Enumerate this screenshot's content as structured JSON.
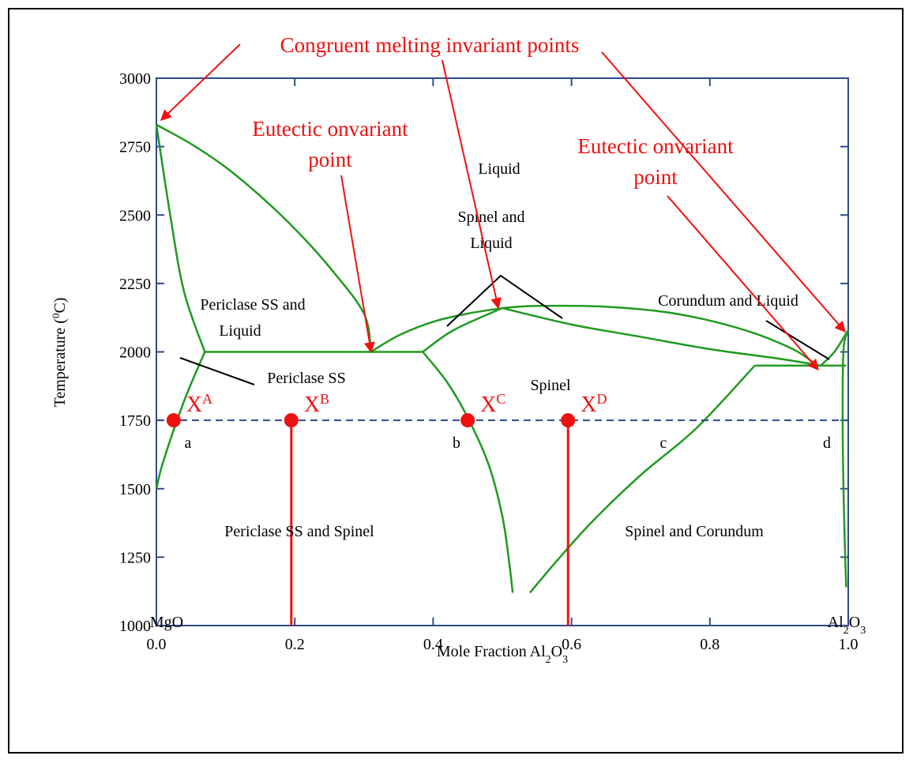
{
  "chart_data": {
    "type": "phase-diagram",
    "xlabel": {
      "base": "Mole Fraction Al",
      "sub": "2",
      "mid": "O",
      "sub2": "3"
    },
    "ylabel": {
      "pre": "Temperature (",
      "sup": "0",
      "post": "C)"
    },
    "xlim": [
      0,
      1
    ],
    "ylim": [
      1000,
      3000
    ],
    "xticks": [
      0.0,
      0.2,
      0.4,
      0.6,
      0.8,
      1.0
    ],
    "xtick_labels": [
      "0.0",
      "0.2",
      "0.4",
      "0.6",
      "0.8",
      "1.0"
    ],
    "yticks": [
      1000,
      1250,
      1500,
      1750,
      2000,
      2250,
      2500,
      2750,
      3000
    ],
    "ytick_labels": [
      "1000",
      "1250",
      "1500",
      "1750",
      "2000",
      "2250",
      "2500",
      "2750",
      "3000"
    ],
    "end_labels": {
      "left": "MgO",
      "right": {
        "base": "Al",
        "sub": "2",
        "mid": "O",
        "sub2": "3"
      }
    },
    "colors": {
      "phase_boundary": "#1f9a1f",
      "axis": "#2e4a8e",
      "annotation": "#ee1111",
      "isotherm": "#2e4a8e"
    },
    "phase_boundaries": [
      {
        "name": "periclase-liquidus",
        "points": [
          [
            0,
            2830
          ],
          [
            0.05,
            2760
          ],
          [
            0.1,
            2675
          ],
          [
            0.15,
            2570
          ],
          [
            0.2,
            2450
          ],
          [
            0.25,
            2310
          ],
          [
            0.3,
            2140
          ],
          [
            0.31,
            2000
          ]
        ]
      },
      {
        "name": "periclase-solidus",
        "points": [
          [
            0,
            2830
          ],
          [
            0.02,
            2500
          ],
          [
            0.04,
            2220
          ],
          [
            0.07,
            2000
          ]
        ]
      },
      {
        "name": "periclase-solvus",
        "points": [
          [
            0.07,
            2000
          ],
          [
            0.04,
            1820
          ],
          [
            0.01,
            1600
          ],
          [
            0,
            1500
          ]
        ]
      },
      {
        "name": "eutectic-1",
        "points": [
          [
            0.07,
            2000
          ],
          [
            0.385,
            2000
          ]
        ]
      },
      {
        "name": "spinel-liquidus-left",
        "points": [
          [
            0.31,
            2000
          ],
          [
            0.35,
            2060
          ],
          [
            0.4,
            2110
          ],
          [
            0.45,
            2140
          ],
          [
            0.5,
            2160
          ]
        ]
      },
      {
        "name": "spinel-liquidus-right",
        "points": [
          [
            0.5,
            2160
          ],
          [
            0.6,
            2100
          ],
          [
            0.7,
            2055
          ],
          [
            0.8,
            2010
          ],
          [
            0.9,
            1975
          ],
          [
            0.96,
            1950
          ]
        ]
      },
      {
        "name": "corundum-liquidus",
        "points": [
          [
            0.96,
            1950
          ],
          [
            0.98,
            2000
          ],
          [
            1.0,
            2080
          ]
        ]
      },
      {
        "name": "spinel-solidus-left",
        "points": [
          [
            0.385,
            2000
          ],
          [
            0.43,
            2080
          ],
          [
            0.5,
            2160
          ]
        ]
      },
      {
        "name": "spinel-solidus-right",
        "points": [
          [
            0.5,
            2160
          ],
          [
            0.55,
            2168
          ],
          [
            0.65,
            2165
          ],
          [
            0.75,
            2140
          ],
          [
            0.85,
            2080
          ],
          [
            0.92,
            2010
          ],
          [
            0.955,
            1950
          ]
        ]
      },
      {
        "name": "spinel-solvus-left",
        "points": [
          [
            0.385,
            2000
          ],
          [
            0.42,
            1890
          ],
          [
            0.45,
            1760
          ],
          [
            0.48,
            1590
          ],
          [
            0.5,
            1400
          ],
          [
            0.51,
            1230
          ],
          [
            0.515,
            1120
          ]
        ]
      },
      {
        "name": "spinel-solvus-right",
        "points": [
          [
            0.54,
            1120
          ],
          [
            0.58,
            1240
          ],
          [
            0.63,
            1380
          ],
          [
            0.7,
            1550
          ],
          [
            0.78,
            1720
          ],
          [
            0.865,
            1950
          ]
        ]
      },
      {
        "name": "eutectic-2",
        "points": [
          [
            0.865,
            1950
          ],
          [
            0.997,
            1950
          ]
        ]
      },
      {
        "name": "corundum-solvus",
        "points": [
          [
            1.0,
            2080
          ],
          [
            0.993,
            2000
          ],
          [
            0.992,
            1700
          ],
          [
            0.994,
            1400
          ],
          [
            0.997,
            1140
          ]
        ]
      }
    ],
    "isotherm": {
      "y": 1750
    },
    "compositions": [
      {
        "name": "X",
        "sup": "A",
        "x": 0.025,
        "line": false
      },
      {
        "name": "X",
        "sup": "B",
        "x": 0.195,
        "line": true
      },
      {
        "name": "X",
        "sup": "C",
        "x": 0.45,
        "line": false
      },
      {
        "name": "X",
        "sup": "D",
        "x": 0.595,
        "line": true
      }
    ],
    "point_labels": [
      "a",
      "b",
      "c",
      "d"
    ],
    "region_labels": [
      "Liquid",
      "Spinel and",
      "Liquid",
      "Periclase SS and",
      "Liquid",
      "Corundum and Liquid",
      "Periclase SS",
      "Spinel",
      "Periclase SS and Spinel",
      "Spinel and Corundum"
    ],
    "annotations": {
      "congruent": "Congruent melting invariant points",
      "eutectic_left": [
        "Eutectic onvariant",
        "point"
      ],
      "eutectic_right": [
        "Eutectic onvariant",
        "point"
      ]
    }
  }
}
